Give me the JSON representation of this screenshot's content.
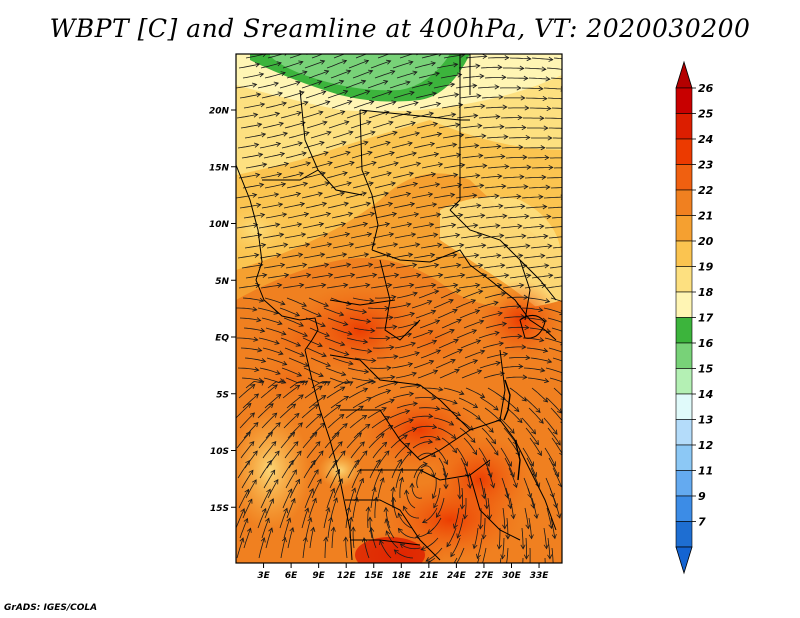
{
  "title": "WBPT [C] and Sreamline at 400hPa, VT: 2020030200",
  "credit": "GrADS: IGES/COLA",
  "map": {
    "type": "map",
    "lat_labels": [
      "20N",
      "15N",
      "10N",
      "5N",
      "EQ",
      "5S",
      "10S",
      "15S"
    ],
    "lon_labels": [
      "3E",
      "6E",
      "9E",
      "12E",
      "15E",
      "18E",
      "21E",
      "24E",
      "27E",
      "30E",
      "33E"
    ],
    "lat_values": [
      20,
      15,
      10,
      5,
      0,
      -5,
      -10,
      -15
    ],
    "lon_values": [
      3,
      6,
      9,
      12,
      15,
      18,
      21,
      24,
      27,
      30,
      33
    ]
  },
  "colorbar": {
    "labels": [
      "26",
      "25",
      "24",
      "23",
      "22",
      "21",
      "20",
      "19",
      "18",
      "17",
      "16",
      "15",
      "14",
      "13",
      "12",
      "11",
      "9",
      "7"
    ],
    "colors": [
      "#c80000",
      "#dc1e00",
      "#ec3a00",
      "#f06010",
      "#f08020",
      "#f5a030",
      "#fbc450",
      "#fde080",
      "#fff5b4",
      "#3cb43c",
      "#78d278",
      "#b4f0b4",
      "#e0fafa",
      "#b4dcfa",
      "#8cc8f5",
      "#64aaf0",
      "#3c8ce6",
      "#1e6ed2"
    ],
    "top_arrow_color": "#b40000",
    "bottom_arrow_color": "#1464d2"
  }
}
